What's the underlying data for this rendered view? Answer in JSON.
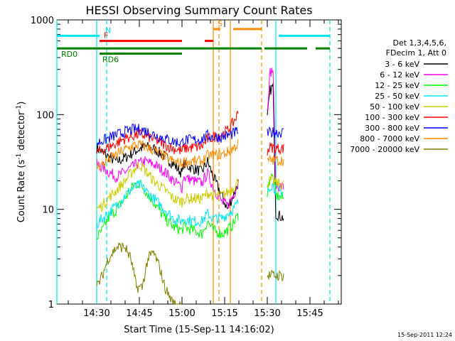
{
  "chart_data": {
    "type": "line",
    "title": "HESSI Observing Summary Count Rates",
    "xlabel": "Start Time (15-Sep-11 14:16:02)",
    "ylabel": "Count Rate (s",
    "ylabel_sup1": "-1",
    "ylabel_mid": " detector",
    "ylabel_sup2": "-1",
    "ylabel_end": ")",
    "y_scale": "log",
    "ylim": [
      1,
      1000
    ],
    "xlim_minutes": [
      0,
      100
    ],
    "x_ticks": [
      {
        "label": "14:30",
        "minute": 14
      },
      {
        "label": "14:45",
        "minute": 29
      },
      {
        "label": "15:00",
        "minute": 44
      },
      {
        "label": "15:15",
        "minute": 59
      },
      {
        "label": "15:30",
        "minute": 74
      },
      {
        "label": "15:45",
        "minute": 89
      }
    ],
    "y_ticks": [
      {
        "label": "1000",
        "value": 1000
      },
      {
        "label": "100",
        "value": 100
      },
      {
        "label": "10",
        "value": 10
      },
      {
        "label": "1",
        "value": 1
      }
    ],
    "legend": {
      "position": "right",
      "header": [
        "Det 1,3,4,5,6,",
        "FDecim 1, Att 0"
      ]
    },
    "timestamp": "15-Sep-2011 12:24",
    "flags": [
      {
        "label": "N",
        "color": "#00e5ee",
        "value": 680,
        "segments": [
          [
            0,
            15
          ],
          [
            78,
            96
          ]
        ]
      },
      {
        "label": "S",
        "color": "#ff8c00",
        "value": 800,
        "segments": [
          [
            55,
            57.5
          ],
          [
            62,
            72
          ]
        ]
      },
      {
        "label": "F",
        "color": "#ff0000",
        "value": 600,
        "segments": [
          [
            15,
            44
          ],
          [
            52,
            55
          ]
        ]
      },
      {
        "label": "RD0",
        "color": "#008000",
        "value": 500,
        "segments": [
          [
            0,
            44
          ],
          [
            44,
            72
          ],
          [
            73,
            88
          ],
          [
            91,
            96
          ]
        ]
      },
      {
        "label": "RD6",
        "color": "#008000",
        "value": 440,
        "segments": [
          [
            15,
            44
          ]
        ]
      }
    ],
    "vlines": [
      {
        "minute": 0,
        "color": "#00e5ee",
        "dashed": false
      },
      {
        "minute": 14,
        "color": "#00e5ee",
        "dashed": false
      },
      {
        "minute": 17.5,
        "color": "#00e5ee",
        "dashed": true
      },
      {
        "minute": 55,
        "color": "#ff8c00",
        "dashed": false
      },
      {
        "minute": 57,
        "color": "#ff8c00",
        "dashed": true
      },
      {
        "minute": 61,
        "color": "#ff8c00",
        "dashed": false
      },
      {
        "minute": 72,
        "color": "#ff8c00",
        "dashed": true
      },
      {
        "minute": 77,
        "color": "#00e5ee",
        "dashed": false
      },
      {
        "minute": 96,
        "color": "#00e5ee",
        "dashed": true
      }
    ],
    "series": [
      {
        "name": "3 - 6 keV",
        "color": "#000000",
        "points": [
          [
            14,
            45
          ],
          [
            16,
            40
          ],
          [
            18,
            36
          ],
          [
            21,
            32
          ],
          [
            24,
            35
          ],
          [
            28,
            42
          ],
          [
            31,
            46
          ],
          [
            34,
            44
          ],
          [
            38,
            36
          ],
          [
            41,
            30
          ],
          [
            44,
            24
          ],
          [
            44.5,
            30
          ],
          [
            48,
            27
          ],
          [
            51,
            25
          ],
          [
            53,
            32
          ],
          [
            55,
            22
          ],
          [
            58,
            14
          ],
          [
            60,
            10
          ],
          [
            62,
            14
          ],
          [
            64,
            20
          ],
          [
            72,
            0
          ],
          [
            74,
            90
          ],
          [
            75,
            180
          ],
          [
            76,
            200
          ],
          [
            77,
            9
          ],
          [
            80,
            8
          ]
        ]
      },
      {
        "name": "6 - 12 keV",
        "color": "#ff00ff",
        "points": [
          [
            14,
            30
          ],
          [
            16,
            28
          ],
          [
            18,
            25
          ],
          [
            21,
            22
          ],
          [
            24,
            25
          ],
          [
            28,
            30
          ],
          [
            31,
            32
          ],
          [
            34,
            30
          ],
          [
            38,
            25
          ],
          [
            41,
            20
          ],
          [
            44,
            17
          ],
          [
            44.5,
            22
          ],
          [
            48,
            20
          ],
          [
            51,
            19
          ],
          [
            53,
            24
          ],
          [
            55,
            17
          ],
          [
            58,
            12
          ],
          [
            60,
            11
          ],
          [
            62,
            14
          ],
          [
            64,
            20
          ],
          [
            72,
            0
          ],
          [
            74,
            120
          ],
          [
            75,
            280
          ],
          [
            76,
            300
          ],
          [
            77,
            18
          ],
          [
            80,
            17
          ]
        ]
      },
      {
        "name": "12 - 25 keV",
        "color": "#00ff00",
        "points": [
          [
            14,
            5
          ],
          [
            16,
            6
          ],
          [
            18,
            8
          ],
          [
            21,
            10
          ],
          [
            24,
            13
          ],
          [
            27,
            18
          ],
          [
            29,
            19
          ],
          [
            31,
            16
          ],
          [
            34,
            12
          ],
          [
            38,
            8
          ],
          [
            41,
            6.5
          ],
          [
            44,
            6
          ],
          [
            44.5,
            6.5
          ],
          [
            48,
            6
          ],
          [
            51,
            5.5
          ],
          [
            53,
            7.5
          ],
          [
            55,
            6
          ],
          [
            58,
            5.5
          ],
          [
            60,
            6
          ],
          [
            62,
            7
          ],
          [
            64,
            9
          ],
          [
            72,
            0
          ],
          [
            74,
            15
          ],
          [
            75,
            22
          ],
          [
            76,
            22
          ],
          [
            77,
            14
          ],
          [
            80,
            13
          ]
        ]
      },
      {
        "name": "25 - 50 keV",
        "color": "#00e5ee",
        "points": [
          [
            14,
            7
          ],
          [
            16,
            8
          ],
          [
            18,
            9
          ],
          [
            21,
            11
          ],
          [
            24,
            14
          ],
          [
            27,
            17
          ],
          [
            29,
            18
          ],
          [
            31,
            16
          ],
          [
            34,
            13
          ],
          [
            38,
            10
          ],
          [
            41,
            8
          ],
          [
            44,
            7.5
          ],
          [
            44.5,
            8
          ],
          [
            48,
            7.5
          ],
          [
            51,
            7.5
          ],
          [
            53,
            9
          ],
          [
            55,
            8
          ],
          [
            58,
            8
          ],
          [
            60,
            9
          ],
          [
            62,
            10
          ],
          [
            64,
            12
          ],
          [
            72,
            0
          ],
          [
            74,
            16
          ],
          [
            75,
            18
          ],
          [
            76,
            18
          ],
          [
            77,
            16
          ],
          [
            80,
            15
          ]
        ]
      },
      {
        "name": "50 - 100 keV",
        "color": "#cccc00",
        "points": [
          [
            14,
            10
          ],
          [
            16,
            11
          ],
          [
            18,
            13
          ],
          [
            21,
            16
          ],
          [
            24,
            20
          ],
          [
            27,
            26
          ],
          [
            29,
            30
          ],
          [
            31,
            26
          ],
          [
            34,
            20
          ],
          [
            38,
            16
          ],
          [
            41,
            13
          ],
          [
            44,
            12
          ],
          [
            44.5,
            13
          ],
          [
            48,
            13
          ],
          [
            51,
            13
          ],
          [
            53,
            15
          ],
          [
            55,
            14
          ],
          [
            58,
            14
          ],
          [
            60,
            15
          ],
          [
            62,
            17
          ],
          [
            64,
            20
          ],
          [
            72,
            0
          ],
          [
            74,
            19
          ],
          [
            75,
            20
          ],
          [
            76,
            20
          ],
          [
            77,
            19
          ],
          [
            80,
            18
          ]
        ]
      },
      {
        "name": "100 - 300 keV",
        "color": "#ff0000",
        "points": [
          [
            14,
            40
          ],
          [
            16,
            42
          ],
          [
            18,
            45
          ],
          [
            21,
            50
          ],
          [
            24,
            56
          ],
          [
            27,
            60
          ],
          [
            29,
            62
          ],
          [
            31,
            60
          ],
          [
            34,
            55
          ],
          [
            38,
            48
          ],
          [
            41,
            44
          ],
          [
            44,
            41
          ],
          [
            44.5,
            44
          ],
          [
            48,
            45
          ],
          [
            51,
            46
          ],
          [
            53,
            55
          ],
          [
            55,
            58
          ],
          [
            58,
            62
          ],
          [
            60,
            68
          ],
          [
            62,
            82
          ],
          [
            64,
            108
          ],
          [
            72,
            0
          ],
          [
            74,
            42
          ],
          [
            75,
            45
          ],
          [
            76,
            45
          ],
          [
            77,
            44
          ],
          [
            80,
            44
          ]
        ]
      },
      {
        "name": "300 - 800 keV",
        "color": "#0000ff",
        "points": [
          [
            14,
            50
          ],
          [
            16,
            53
          ],
          [
            18,
            56
          ],
          [
            21,
            61
          ],
          [
            24,
            66
          ],
          [
            27,
            70
          ],
          [
            29,
            70
          ],
          [
            31,
            68
          ],
          [
            34,
            62
          ],
          [
            38,
            56
          ],
          [
            41,
            52
          ],
          [
            44,
            50
          ],
          [
            44.5,
            54
          ],
          [
            48,
            54
          ],
          [
            51,
            55
          ],
          [
            53,
            60
          ],
          [
            55,
            58
          ],
          [
            58,
            58
          ],
          [
            60,
            60
          ],
          [
            62,
            63
          ],
          [
            64,
            68
          ],
          [
            72,
            0
          ],
          [
            74,
            62
          ],
          [
            75,
            65
          ],
          [
            76,
            65
          ],
          [
            77,
            65
          ],
          [
            80,
            65
          ]
        ]
      },
      {
        "name": "800 - 7000 keV",
        "color": "#ff8c00",
        "points": [
          [
            14,
            28
          ],
          [
            16,
            30
          ],
          [
            18,
            33
          ],
          [
            21,
            38
          ],
          [
            24,
            43
          ],
          [
            27,
            47
          ],
          [
            29,
            48
          ],
          [
            31,
            46
          ],
          [
            34,
            42
          ],
          [
            38,
            36
          ],
          [
            41,
            32
          ],
          [
            44,
            30
          ],
          [
            44.5,
            32
          ],
          [
            48,
            32
          ],
          [
            51,
            32
          ],
          [
            53,
            37
          ],
          [
            55,
            37
          ],
          [
            58,
            38
          ],
          [
            60,
            40
          ],
          [
            62,
            44
          ],
          [
            64,
            50
          ],
          [
            72,
            0
          ],
          [
            74,
            32
          ],
          [
            75,
            33
          ],
          [
            76,
            33
          ],
          [
            77,
            33
          ],
          [
            80,
            33
          ]
        ]
      },
      {
        "name": "7000 - 20000 keV",
        "color": "#808000",
        "points": [
          [
            14,
            1.5
          ],
          [
            16,
            2
          ],
          [
            18,
            3
          ],
          [
            21,
            4
          ],
          [
            24,
            4
          ],
          [
            26,
            3
          ],
          [
            28,
            1.5
          ],
          [
            30,
            1.5
          ],
          [
            32,
            3
          ],
          [
            34,
            3.5
          ],
          [
            36,
            2.5
          ],
          [
            38,
            1.5
          ],
          [
            41,
            1
          ],
          [
            44,
            1
          ],
          [
            72,
            0
          ],
          [
            74,
            2
          ],
          [
            76,
            2
          ],
          [
            80,
            2
          ]
        ]
      }
    ]
  }
}
